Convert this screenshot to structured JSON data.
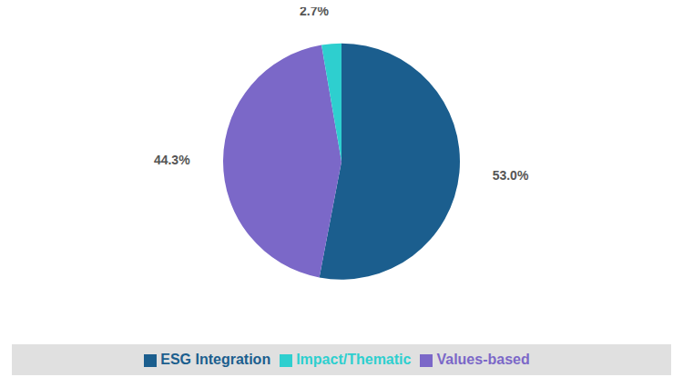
{
  "chart_data": {
    "type": "pie",
    "categories": [
      "ESG Integration",
      "Values-based",
      "Impact/Thematic"
    ],
    "values": [
      53.0,
      44.3,
      2.7
    ],
    "value_labels": [
      "53.0%",
      "44.3%",
      "2.7%"
    ],
    "colors": [
      "#1b5e8e",
      "#7b68c8",
      "#2ecfcf"
    ],
    "data_labels": true,
    "legend": "bottom"
  }
}
